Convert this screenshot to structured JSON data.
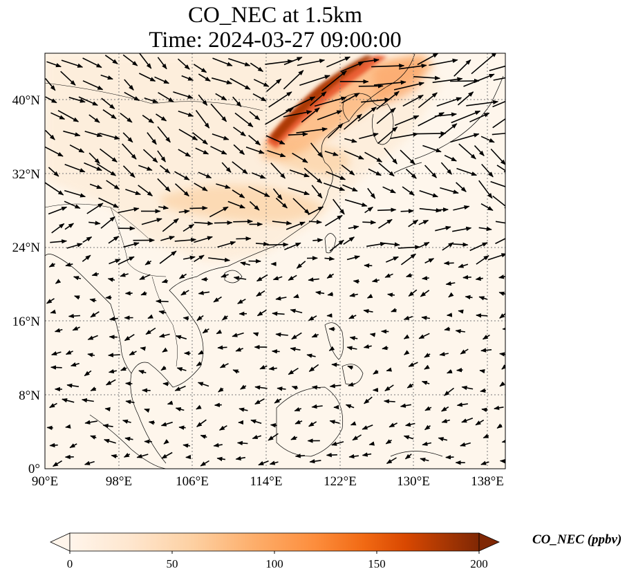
{
  "map": {
    "title_line1": "CO_NEC at 1.5km",
    "title_line2": "Time: 2024-03-27 09:00:00",
    "lon_ticks": [
      "90°E",
      "98°E",
      "106°E",
      "114°E",
      "122°E",
      "130°E",
      "138°E"
    ],
    "lat_ticks": [
      "0°",
      "8°N",
      "16°N",
      "24°N",
      "32°N",
      "40°N"
    ],
    "extent": {
      "lon_min": 90,
      "lon_max": 140,
      "lat_min": 0,
      "lat_max": 45
    },
    "gridlines": true
  },
  "colorbar": {
    "label": "CO_NEC (ppbv)",
    "ticks": [
      "0",
      "50",
      "100",
      "150",
      "200"
    ],
    "min": 0,
    "max": 200,
    "extend": "both",
    "colors": [
      "#fff5eb",
      "#fee6ce",
      "#fdd0a2",
      "#fdae6b",
      "#fd8d3c",
      "#f16913",
      "#d94801",
      "#a63603",
      "#7f2704"
    ]
  }
}
